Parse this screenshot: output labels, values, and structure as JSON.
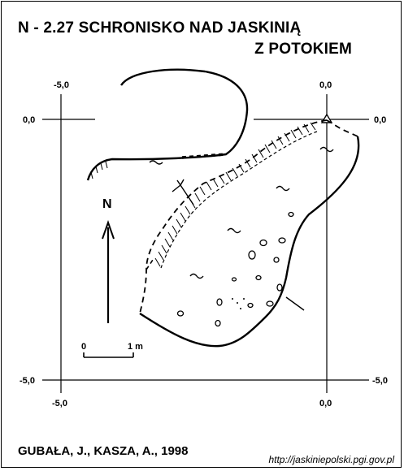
{
  "header": {
    "title": "N - 2.27  SCHRONISKO NAD JASKINIĄ",
    "subtitle": "Z POTOKIEM"
  },
  "grid": {
    "left_label": "-5,0",
    "top_right_label": "0,0",
    "upper_left_label": "0,0",
    "upper_right_label": "0,0",
    "lower_left_label": "-5,0",
    "lower_right_label": "-5,0",
    "bottom_left_label": "-5,0",
    "bottom_right_label": "0,0"
  },
  "north": {
    "label": "N"
  },
  "scale": {
    "zero_label": "0",
    "one_label": "1 m"
  },
  "footer": {
    "author": "GUBAŁA, J., KASZA, A., 1998",
    "url": "http://jaskiniepolski.pgi.gov.pl"
  }
}
